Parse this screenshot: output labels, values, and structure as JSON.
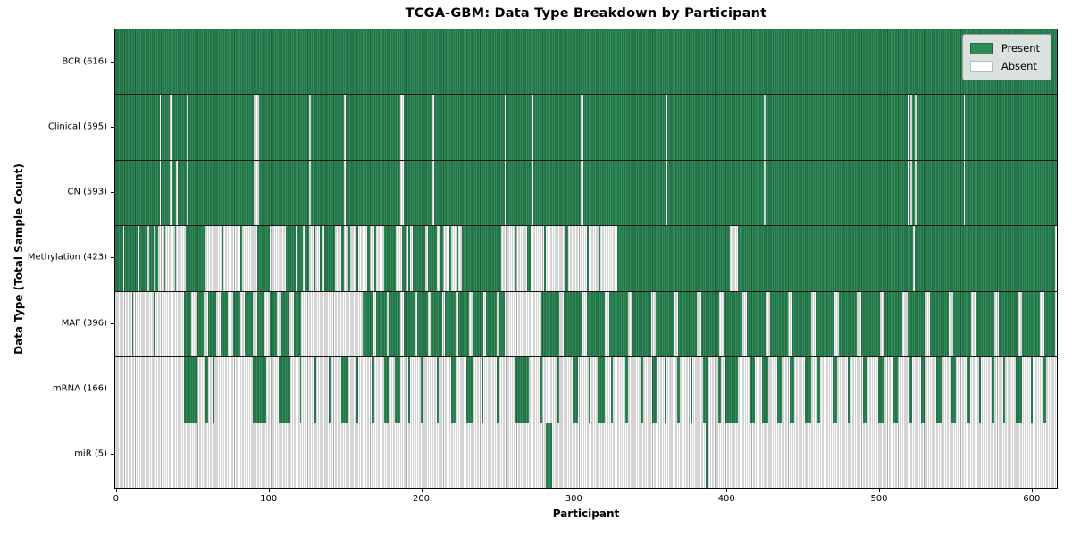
{
  "title": "TCGA-GBM: Data Type Breakdown by Participant",
  "xlabel": "Participant",
  "ylabel": "Data Type (Total Sample Count)",
  "legend": {
    "present_label": "Present",
    "absent_label": "Absent"
  },
  "colors": {
    "present": "#2e8b57",
    "absent": "#fdfdfd"
  },
  "x_axis": {
    "ticks": [
      0,
      100,
      200,
      300,
      400,
      500,
      600
    ],
    "max": 617
  },
  "chart_data": {
    "type": "heatmap",
    "title": "TCGA-GBM: Data Type Breakdown by Participant",
    "xlabel": "Participant",
    "ylabel": "Data Type (Total Sample Count)",
    "legend_entries": [
      "Present",
      "Absent"
    ],
    "legend_position": "upper right",
    "n_participants": 616,
    "x_range": [
      0,
      616
    ],
    "x_ticks": [
      0,
      100,
      200,
      300,
      400,
      500,
      600
    ],
    "categories": [
      "BCR (616)",
      "Clinical (595)",
      "CN (593)",
      "Methylation (423)",
      "MAF (396)",
      "mRNA (166)",
      "miR (5)"
    ],
    "rows": [
      {
        "data_type": "BCR",
        "label": "BCR (616)",
        "present_count": 616,
        "mode": "absent-runs",
        "runs": []
      },
      {
        "data_type": "Clinical",
        "label": "Clinical (595)",
        "present_count": 595,
        "mode": "absent-runs",
        "runs": [
          [
            29,
            1
          ],
          [
            36,
            1
          ],
          [
            47,
            1
          ],
          [
            91,
            3
          ],
          [
            127,
            1
          ],
          [
            150,
            1
          ],
          [
            187,
            2
          ],
          [
            208,
            1
          ],
          [
            255,
            1
          ],
          [
            273,
            1
          ],
          [
            305,
            2
          ],
          [
            361,
            1
          ],
          [
            425,
            1
          ],
          [
            519,
            1
          ],
          [
            521,
            1
          ],
          [
            524,
            1
          ],
          [
            556,
            1
          ]
        ]
      },
      {
        "data_type": "CN",
        "label": "CN (593)",
        "present_count": 593,
        "mode": "absent-runs",
        "runs": [
          [
            29,
            1
          ],
          [
            36,
            1
          ],
          [
            40,
            1
          ],
          [
            47,
            1
          ],
          [
            91,
            3
          ],
          [
            97,
            1
          ],
          [
            127,
            1
          ],
          [
            150,
            1
          ],
          [
            187,
            2
          ],
          [
            208,
            1
          ],
          [
            255,
            1
          ],
          [
            273,
            1
          ],
          [
            305,
            2
          ],
          [
            361,
            1
          ],
          [
            425,
            1
          ],
          [
            519,
            1
          ],
          [
            521,
            1
          ],
          [
            524,
            1
          ],
          [
            556,
            1
          ]
        ]
      },
      {
        "data_type": "Methylation",
        "label": "Methylation (423)",
        "present_count": 423,
        "mode": "present-runs",
        "runs": [
          [
            0,
            5
          ],
          [
            6,
            9
          ],
          [
            16,
            5
          ],
          [
            22,
            3
          ],
          [
            26,
            2
          ],
          [
            32,
            1
          ],
          [
            39,
            1
          ],
          [
            46,
            13
          ],
          [
            70,
            1
          ],
          [
            82,
            1
          ],
          [
            93,
            8
          ],
          [
            112,
            6
          ],
          [
            119,
            4
          ],
          [
            124,
            3
          ],
          [
            130,
            1
          ],
          [
            134,
            2
          ],
          [
            137,
            7
          ],
          [
            148,
            2
          ],
          [
            153,
            1
          ],
          [
            158,
            1
          ],
          [
            165,
            2
          ],
          [
            170,
            1
          ],
          [
            176,
            8
          ],
          [
            188,
            2
          ],
          [
            192,
            1
          ],
          [
            195,
            8
          ],
          [
            205,
            6
          ],
          [
            213,
            2
          ],
          [
            219,
            1
          ],
          [
            224,
            1
          ],
          [
            227,
            26
          ],
          [
            262,
            1
          ],
          [
            270,
            2
          ],
          [
            281,
            1
          ],
          [
            295,
            2
          ],
          [
            309,
            1
          ],
          [
            317,
            1
          ],
          [
            329,
            74
          ],
          [
            408,
            115
          ],
          [
            524,
            92
          ]
        ]
      },
      {
        "data_type": "MAF",
        "label": "MAF (396)",
        "present_count": 396,
        "mode": "present-runs",
        "runs": [
          [
            11,
            1
          ],
          [
            25,
            1
          ],
          [
            45,
            5
          ],
          [
            53,
            5
          ],
          [
            61,
            5
          ],
          [
            69,
            5
          ],
          [
            77,
            5
          ],
          [
            85,
            5
          ],
          [
            93,
            5
          ],
          [
            101,
            5
          ],
          [
            109,
            5
          ],
          [
            117,
            5
          ],
          [
            162,
            7
          ],
          [
            171,
            7
          ],
          [
            180,
            7
          ],
          [
            189,
            7
          ],
          [
            198,
            7
          ],
          [
            207,
            7
          ],
          [
            216,
            7
          ],
          [
            225,
            7
          ],
          [
            234,
            7
          ],
          [
            243,
            7
          ],
          [
            252,
            3
          ],
          [
            279,
            12
          ],
          [
            294,
            12
          ],
          [
            309,
            12
          ],
          [
            324,
            12
          ],
          [
            339,
            12
          ],
          [
            354,
            12
          ],
          [
            369,
            12
          ],
          [
            384,
            12
          ],
          [
            399,
            12
          ],
          [
            414,
            12
          ],
          [
            429,
            12
          ],
          [
            444,
            12
          ],
          [
            459,
            12
          ],
          [
            474,
            12
          ],
          [
            489,
            12
          ],
          [
            504,
            12
          ],
          [
            519,
            12
          ],
          [
            534,
            12
          ],
          [
            549,
            12
          ],
          [
            564,
            12
          ],
          [
            579,
            12
          ],
          [
            594,
            12
          ],
          [
            609,
            7
          ]
        ]
      },
      {
        "data_type": "mRNA",
        "label": "mRNA (166)",
        "present_count": 166,
        "mode": "present-runs",
        "runs": [
          [
            45,
            9
          ],
          [
            59,
            2
          ],
          [
            64,
            1
          ],
          [
            90,
            9
          ],
          [
            107,
            8
          ],
          [
            121,
            1
          ],
          [
            130,
            2
          ],
          [
            140,
            1
          ],
          [
            148,
            4
          ],
          [
            158,
            1
          ],
          [
            168,
            2
          ],
          [
            176,
            4
          ],
          [
            183,
            4
          ],
          [
            192,
            1
          ],
          [
            200,
            2
          ],
          [
            211,
            1
          ],
          [
            220,
            3
          ],
          [
            230,
            4
          ],
          [
            240,
            1
          ],
          [
            250,
            2
          ],
          [
            262,
            9
          ],
          [
            278,
            2
          ],
          [
            290,
            1
          ],
          [
            300,
            3
          ],
          [
            310,
            1
          ],
          [
            316,
            5
          ],
          [
            325,
            1
          ],
          [
            334,
            2
          ],
          [
            345,
            1
          ],
          [
            352,
            3
          ],
          [
            360,
            1
          ],
          [
            368,
            2
          ],
          [
            377,
            1
          ],
          [
            385,
            3
          ],
          [
            395,
            2
          ],
          [
            400,
            8
          ],
          [
            416,
            3
          ],
          [
            424,
            4
          ],
          [
            434,
            3
          ],
          [
            442,
            3
          ],
          [
            452,
            4
          ],
          [
            460,
            2
          ],
          [
            470,
            3
          ],
          [
            480,
            2
          ],
          [
            490,
            3
          ],
          [
            500,
            4
          ],
          [
            510,
            3
          ],
          [
            520,
            2
          ],
          [
            528,
            3
          ],
          [
            538,
            4
          ],
          [
            548,
            3
          ],
          [
            558,
            2
          ],
          [
            566,
            1
          ],
          [
            574,
            2
          ],
          [
            582,
            1
          ],
          [
            590,
            4
          ],
          [
            600,
            1
          ],
          [
            608,
            2
          ]
        ]
      },
      {
        "data_type": "miR",
        "label": "miR (5)",
        "present_count": 5,
        "mode": "present-runs",
        "runs": [
          [
            282,
            4
          ],
          [
            387,
            1
          ]
        ]
      }
    ]
  }
}
